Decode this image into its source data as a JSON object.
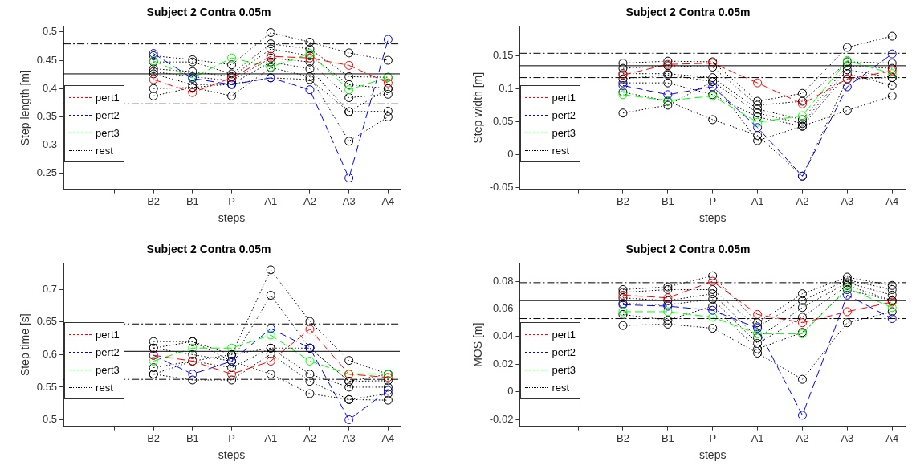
{
  "chart_data": [
    {
      "type": "line",
      "title": "Subject 2 Contra 0.05m",
      "xlabel": "steps",
      "ylabel": "Step length [m]",
      "categories": [
        null,
        "B2",
        "B1",
        "P",
        "A1",
        "A2",
        "A3",
        "A4"
      ],
      "ylim": [
        0.222,
        0.51
      ],
      "yticks": [
        0.25,
        0.3,
        0.35,
        0.4,
        0.45,
        0.5
      ],
      "marker": "circle",
      "legend": "left",
      "ref_lines": [
        {
          "axis": "y",
          "value": 0.479,
          "color": "#000000",
          "line_style": "dashed"
        },
        {
          "axis": "y",
          "value": 0.426,
          "color": "#000000",
          "line_style": "solid"
        },
        {
          "axis": "y",
          "value": 0.373,
          "color": "#000000",
          "line_style": "dashed"
        }
      ],
      "series": [
        {
          "name": "pert1",
          "color": "#ff0000",
          "line_style": "dashed",
          "values": [
            null,
            0.416,
            0.393,
            0.419,
            0.457,
            0.454,
            0.441,
            0.41
          ]
        },
        {
          "name": "pert2",
          "color": "#0000ff",
          "line_style": "dashed",
          "values": [
            null,
            0.462,
            0.418,
            0.407,
            0.419,
            0.398,
            0.242,
            0.487
          ]
        },
        {
          "name": "pert3",
          "color": "#00ff00",
          "line_style": "dashed",
          "values": [
            null,
            0.449,
            0.419,
            0.454,
            0.438,
            0.462,
            0.398,
            0.42
          ]
        },
        {
          "name": "rest",
          "color": "#000000",
          "line_style": "dotted",
          "values": [
            null,
            0.458,
            0.451,
            0.442,
            0.499,
            0.482,
            0.463,
            0.45
          ]
        },
        {
          "color": "#000000",
          "line_style": "dotted",
          "values": [
            null,
            0.447,
            0.447,
            0.426,
            0.479,
            0.47,
            0.421,
            0.42
          ]
        },
        {
          "color": "#000000",
          "line_style": "dotted",
          "values": [
            null,
            0.435,
            0.43,
            0.421,
            0.47,
            0.458,
            0.407,
            0.4
          ]
        },
        {
          "color": "#000000",
          "line_style": "dotted",
          "values": [
            null,
            0.43,
            0.421,
            0.414,
            0.454,
            0.447,
            0.384,
            0.39
          ]
        },
        {
          "color": "#000000",
          "line_style": "dotted",
          "values": [
            null,
            0.426,
            0.407,
            0.408,
            0.447,
            0.435,
            0.359,
            0.36
          ]
        },
        {
          "color": "#000000",
          "line_style": "dotted",
          "values": [
            null,
            0.4,
            0.402,
            0.387,
            0.437,
            0.421,
            0.307,
            0.35
          ]
        },
        {
          "color": "#000000",
          "line_style": "dotted",
          "values": [
            null,
            0.387,
            0.402,
            0.408,
            0.419,
            0.416,
            0.359,
            0.4
          ]
        }
      ]
    },
    {
      "type": "line",
      "title": "Subject 2 Contra 0.05m",
      "xlabel": "steps",
      "ylabel": "Step width [m]",
      "categories": [
        null,
        "B2",
        "B1",
        "P",
        "A1",
        "A2",
        "A3",
        "A4"
      ],
      "ylim": [
        -0.053,
        0.195
      ],
      "yticks": [
        -0.05,
        0,
        0.05,
        0.1,
        0.15
      ],
      "marker": "circle",
      "legend": "left",
      "ref_lines": [
        {
          "axis": "y",
          "value": 0.154,
          "color": "#000000",
          "line_style": "dashed"
        },
        {
          "axis": "y",
          "value": 0.135,
          "color": "#000000",
          "line_style": "solid"
        },
        {
          "axis": "y",
          "value": 0.117,
          "color": "#000000",
          "line_style": "dashed"
        }
      ],
      "series": [
        {
          "name": "pert1",
          "color": "#ff0000",
          "line_style": "dashed",
          "values": [
            null,
            0.121,
            0.137,
            0.139,
            0.109,
            0.077,
            0.115,
            0.127
          ]
        },
        {
          "name": "pert2",
          "color": "#0000ff",
          "line_style": "dashed",
          "values": [
            null,
            0.105,
            0.091,
            0.103,
            0.041,
            -0.033,
            0.103,
            0.153
          ]
        },
        {
          "name": "pert3",
          "color": "#00ff00",
          "line_style": "dashed",
          "values": [
            null,
            0.091,
            0.082,
            0.089,
            0.049,
            0.059,
            0.143,
            0.123
          ]
        },
        {
          "name": "rest",
          "color": "#000000",
          "line_style": "dotted",
          "values": [
            null,
            0.139,
            0.142,
            0.141,
            0.081,
            0.093,
            0.163,
            0.18
          ]
        },
        {
          "color": "#000000",
          "line_style": "dotted",
          "values": [
            null,
            0.131,
            0.135,
            0.133,
            0.075,
            0.081,
            0.141,
            0.139
          ]
        },
        {
          "color": "#000000",
          "line_style": "dotted",
          "values": [
            null,
            0.123,
            0.123,
            0.117,
            0.069,
            0.053,
            0.135,
            0.131
          ]
        },
        {
          "color": "#000000",
          "line_style": "dotted",
          "values": [
            null,
            0.115,
            0.121,
            0.111,
            0.063,
            0.047,
            0.129,
            0.117
          ]
        },
        {
          "color": "#000000",
          "line_style": "dotted",
          "values": [
            null,
            0.109,
            0.109,
            0.091,
            0.057,
            0.043,
            0.123,
            0.105
          ]
        },
        {
          "color": "#000000",
          "line_style": "dotted",
          "values": [
            null,
            0.095,
            0.081,
            0.053,
            0.029,
            -0.033,
            0.115,
            0.117
          ]
        },
        {
          "color": "#000000",
          "line_style": "dotted",
          "values": [
            null,
            0.063,
            0.075,
            0.111,
            0.021,
            0.043,
            0.067,
            0.089
          ]
        }
      ]
    },
    {
      "type": "line",
      "title": "Subject 2 Contra 0.05m",
      "xlabel": "steps",
      "ylabel": "Step time [s]",
      "categories": [
        null,
        "B2",
        "B1",
        "P",
        "A1",
        "A2",
        "A3",
        "A4"
      ],
      "ylim": [
        0.49,
        0.74
      ],
      "yticks": [
        0.5,
        0.55,
        0.6,
        0.65,
        0.7
      ],
      "marker": "circle",
      "legend": "left",
      "ref_lines": [
        {
          "axis": "y",
          "value": 0.647,
          "color": "#000000",
          "line_style": "dashed"
        },
        {
          "axis": "y",
          "value": 0.605,
          "color": "#000000",
          "line_style": "solid"
        },
        {
          "axis": "y",
          "value": 0.562,
          "color": "#000000",
          "line_style": "dashed"
        }
      ],
      "series": [
        {
          "name": "pert1",
          "color": "#ff0000",
          "line_style": "dashed",
          "values": [
            null,
            0.599,
            0.59,
            0.57,
            0.59,
            0.639,
            0.57,
            0.565
          ]
        },
        {
          "name": "pert2",
          "color": "#0000ff",
          "line_style": "dashed",
          "values": [
            null,
            0.599,
            0.57,
            0.59,
            0.64,
            0.61,
            0.5,
            0.545
          ]
        },
        {
          "name": "pert3",
          "color": "#00ff00",
          "line_style": "dashed",
          "values": [
            null,
            0.59,
            0.61,
            0.61,
            0.63,
            0.59,
            0.57,
            0.57
          ]
        },
        {
          "name": "rest",
          "color": "#000000",
          "line_style": "dotted",
          "values": [
            null,
            0.62,
            0.62,
            0.6,
            0.73,
            0.651,
            0.591,
            0.57
          ]
        },
        {
          "color": "#000000",
          "line_style": "dotted",
          "values": [
            null,
            0.61,
            0.6,
            0.59,
            0.691,
            0.61,
            0.559,
            0.56
          ]
        },
        {
          "color": "#000000",
          "line_style": "dotted",
          "values": [
            null,
            0.58,
            0.59,
            0.58,
            0.61,
            0.57,
            0.55,
            0.55
          ]
        },
        {
          "color": "#000000",
          "line_style": "dotted",
          "values": [
            null,
            0.57,
            0.561,
            0.561,
            0.601,
            0.559,
            0.531,
            0.54
          ]
        },
        {
          "color": "#000000",
          "line_style": "dotted",
          "values": [
            null,
            0.61,
            0.62,
            0.59,
            0.57,
            0.54,
            0.531,
            0.53
          ]
        },
        {
          "color": "#000000",
          "line_style": "dotted",
          "values": [
            null,
            0.57,
            0.59,
            0.6,
            0.61,
            0.61,
            0.559,
            0.57
          ]
        }
      ]
    },
    {
      "type": "line",
      "title": "Subject 2 Contra 0.05m",
      "xlabel": "steps",
      "ylabel": "MOS [m]",
      "categories": [
        null,
        "B2",
        "B1",
        "P",
        "A1",
        "A2",
        "A3",
        "A4"
      ],
      "ylim": [
        -0.025,
        0.093
      ],
      "yticks": [
        -0.02,
        0,
        0.02,
        0.04,
        0.06,
        0.08
      ],
      "marker": "circle",
      "legend": "left",
      "ref_lines": [
        {
          "axis": "y",
          "value": 0.079,
          "color": "#000000",
          "line_style": "dashed"
        },
        {
          "axis": "y",
          "value": 0.066,
          "color": "#000000",
          "line_style": "solid"
        },
        {
          "axis": "y",
          "value": 0.053,
          "color": "#000000",
          "line_style": "dashed"
        }
      ],
      "series": [
        {
          "name": "pert1",
          "color": "#ff0000",
          "line_style": "dashed",
          "values": [
            null,
            0.07,
            0.068,
            0.08,
            0.056,
            0.05,
            0.058,
            0.065
          ]
        },
        {
          "name": "pert2",
          "color": "#0000ff",
          "line_style": "dashed",
          "values": [
            null,
            0.063,
            0.062,
            0.059,
            0.046,
            -0.017,
            0.07,
            0.053
          ]
        },
        {
          "name": "pert3",
          "color": "#00ff00",
          "line_style": "dashed",
          "values": [
            null,
            0.058,
            0.058,
            0.054,
            0.042,
            0.042,
            0.075,
            0.061
          ]
        },
        {
          "name": "rest",
          "color": "#000000",
          "line_style": "dotted",
          "values": [
            null,
            0.074,
            0.076,
            0.084,
            0.05,
            0.071,
            0.083,
            0.077
          ]
        },
        {
          "color": "#000000",
          "line_style": "dotted",
          "values": [
            null,
            0.072,
            0.074,
            0.074,
            0.047,
            0.066,
            0.081,
            0.074
          ]
        },
        {
          "color": "#000000",
          "line_style": "dotted",
          "values": [
            null,
            0.068,
            0.066,
            0.071,
            0.039,
            0.061,
            0.079,
            0.07
          ]
        },
        {
          "color": "#000000",
          "line_style": "dotted",
          "values": [
            null,
            0.064,
            0.063,
            0.067,
            0.035,
            0.054,
            0.077,
            0.066
          ]
        },
        {
          "color": "#000000",
          "line_style": "dotted",
          "values": [
            null,
            0.056,
            0.052,
            0.062,
            0.031,
            0.043,
            0.074,
            0.066
          ]
        },
        {
          "color": "#000000",
          "line_style": "dotted",
          "values": [
            null,
            0.048,
            0.049,
            0.046,
            0.028,
            0.009,
            0.05,
            0.058
          ]
        }
      ]
    }
  ]
}
